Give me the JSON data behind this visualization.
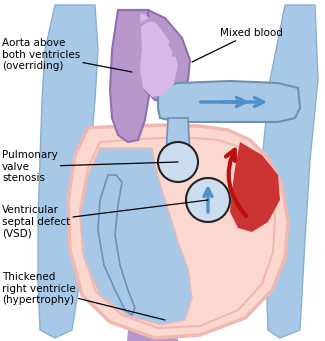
{
  "bg_color": "#ffffff",
  "labels": {
    "aorta": "Aorta above\nboth ventricles\n(overriding)",
    "mixed": "Mixed blood",
    "pulmonary": "Pulmonary\nvalve\nstenosis",
    "vsd": "Ventricular\nseptal defect\n(VSD)",
    "thickened": "Thickened\nright ventricle\n(hypertrophy)"
  },
  "heart_outer_color": "#f0b8b0",
  "heart_inner_color": "#fad8d0",
  "left_side_bg": "#a8c8e8",
  "aorta_outer": "#b898cc",
  "aorta_inner": "#d8b8e8",
  "blue_arrow": "#5090c8",
  "red_blood": "#bb1111",
  "annotation_line": "#000000",
  "circle_stroke": "#222222",
  "font_size": 7.5
}
